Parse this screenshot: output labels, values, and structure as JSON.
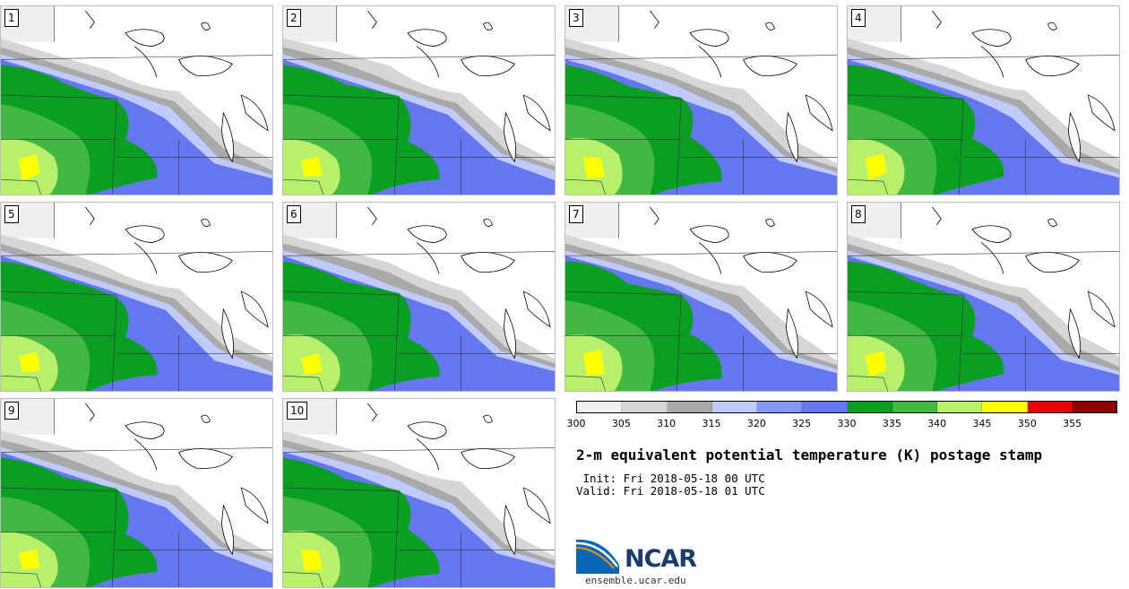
{
  "panels": [
    {
      "label": "1"
    },
    {
      "label": "2"
    },
    {
      "label": "3"
    },
    {
      "label": "4"
    },
    {
      "label": "5"
    },
    {
      "label": "6"
    },
    {
      "label": "7"
    },
    {
      "label": "8"
    },
    {
      "label": "9"
    },
    {
      "label": "10"
    }
  ],
  "legend": {
    "colors": [
      "#efefef",
      "#d6d6d6",
      "#a9a9a9",
      "#bfcaff",
      "#8699f7",
      "#6477ef",
      "#0a9e22",
      "#42b842",
      "#b8f06e",
      "#ffff00",
      "#e60000",
      "#8c0000"
    ],
    "ticks": [
      "300",
      "305",
      "310",
      "315",
      "320",
      "325",
      "330",
      "335",
      "340",
      "345",
      "350",
      "355"
    ]
  },
  "title": "2-m equivalent potential temperature (K) postage stamp",
  "init": " Init: Fri 2018-05-18 00 UTC",
  "valid": "Valid: Fri 2018-05-18 01 UTC",
  "logo": {
    "text": "NCAR",
    "url": "ensemble.ucar.edu"
  }
}
